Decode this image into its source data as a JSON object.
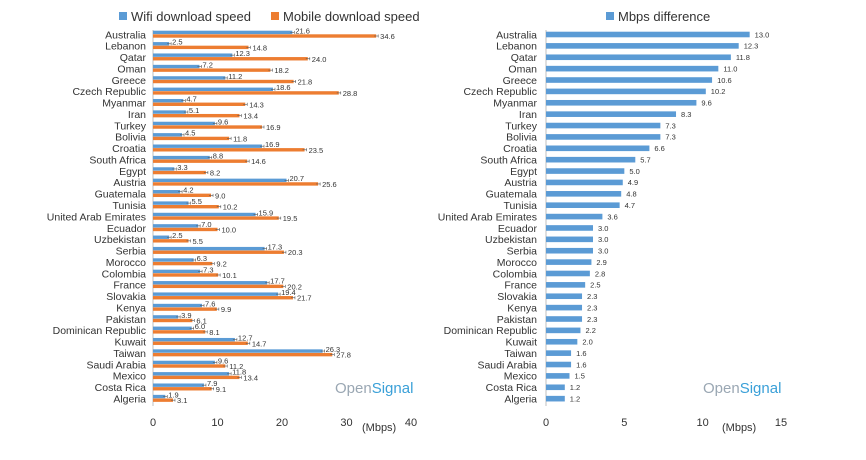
{
  "colors": {
    "wifi": "#5b9bd5",
    "mobile": "#ed7d31",
    "diff": "#5b9bd5",
    "axis_text": "#333333",
    "grid": "#d9d9d9"
  },
  "watermark": {
    "part1": "Open",
    "part2": "Signal"
  },
  "chart_data": [
    {
      "type": "bar",
      "orientation": "horizontal",
      "legend_position": "top",
      "unit_label": "(Mbps)",
      "xlim": [
        0,
        40
      ],
      "xticks": [
        "0",
        "10",
        "20",
        "30",
        "40"
      ],
      "categories": [
        "Australia",
        "Lebanon",
        "Qatar",
        "Oman",
        "Greece",
        "Czech Republic",
        "Myanmar",
        "Iran",
        "Turkey",
        "Bolivia",
        "Croatia",
        "South Africa",
        "Egypt",
        "Austria",
        "Guatemala",
        "Tunisia",
        "United Arab Emirates",
        "Ecuador",
        "Uzbekistan",
        "Serbia",
        "Morocco",
        "Colombia",
        "France",
        "Slovakia",
        "Kenya",
        "Pakistan",
        "Dominican Republic",
        "Kuwait",
        "Taiwan",
        "Saudi Arabia",
        "Mexico",
        "Costa Rica",
        "Algeria"
      ],
      "series": [
        {
          "name": "Wifi download speed",
          "values": [
            21.6,
            2.5,
            12.3,
            7.2,
            11.2,
            18.6,
            4.7,
            5.1,
            9.6,
            4.5,
            16.9,
            8.8,
            3.3,
            20.7,
            4.2,
            5.5,
            15.9,
            7.0,
            2.5,
            17.3,
            6.3,
            7.3,
            17.7,
            19.4,
            7.6,
            3.9,
            6.0,
            12.7,
            26.3,
            9.6,
            11.8,
            7.9,
            1.9
          ]
        },
        {
          "name": "Mobile download speed",
          "values": [
            34.6,
            14.8,
            24.0,
            18.2,
            21.8,
            28.8,
            14.3,
            13.4,
            16.9,
            11.8,
            23.5,
            14.6,
            8.2,
            25.6,
            9.0,
            10.2,
            19.5,
            10.0,
            5.5,
            20.3,
            9.2,
            10.1,
            20.2,
            21.7,
            9.9,
            6.1,
            8.1,
            14.7,
            27.8,
            11.2,
            13.4,
            9.1,
            3.1
          ]
        }
      ],
      "labels": {
        "wifi": [
          "21.6",
          "2.5",
          "12.3",
          "7.2",
          "11.2",
          "18.6",
          "4.7",
          "5.1",
          "9.6",
          "4.5",
          "16.9",
          "8.8",
          "3.3",
          "20.7",
          "4.2",
          "5.5",
          "15.9",
          "7.0",
          "2.5",
          "17.3",
          "6.3",
          "7.3",
          "17.7",
          "19.4",
          "7.6",
          "3.9",
          "6.0",
          "12.7",
          "26.3",
          "9.6",
          "11.8",
          "7.9",
          "1.9"
        ],
        "mobile": [
          "34.6",
          "14.8",
          "24.0",
          "18.2",
          "21.8",
          "28.8",
          "14.3",
          "13.4",
          "16.9",
          "11.8",
          "23.5",
          "14.6",
          "8.2",
          "25.6",
          "9.0",
          "10.2",
          "19.5",
          "10.0",
          "5.5",
          "20.3",
          "9.2",
          "10.1",
          "20.2",
          "21.7",
          "9.9",
          "6.1",
          "8.1",
          "14.7",
          "27.8",
          "11.2",
          "13.4",
          "9.1",
          "3.1"
        ]
      }
    },
    {
      "type": "bar",
      "orientation": "horizontal",
      "legend_position": "top",
      "unit_label": "(Mbps)",
      "xlim": [
        0,
        15
      ],
      "xticks": [
        "0",
        "5",
        "10",
        "15"
      ],
      "categories": [
        "Australia",
        "Lebanon",
        "Qatar",
        "Oman",
        "Greece",
        "Czech Republic",
        "Myanmar",
        "Iran",
        "Turkey",
        "Bolivia",
        "Croatia",
        "South Africa",
        "Egypt",
        "Austria",
        "Guatemala",
        "Tunisia",
        "United Arab Emirates",
        "Ecuador",
        "Uzbekistan",
        "Serbia",
        "Morocco",
        "Colombia",
        "France",
        "Slovakia",
        "Kenya",
        "Pakistan",
        "Dominican Republic",
        "Kuwait",
        "Taiwan",
        "Saudi Arabia",
        "Mexico",
        "Costa Rica",
        "Algeria"
      ],
      "series": [
        {
          "name": "Mbps difference",
          "values": [
            13.0,
            12.3,
            11.8,
            11.0,
            10.6,
            10.2,
            9.6,
            8.3,
            7.3,
            7.3,
            6.6,
            5.7,
            5.0,
            4.9,
            4.8,
            4.7,
            3.6,
            3.0,
            3.0,
            3.0,
            2.9,
            2.8,
            2.5,
            2.3,
            2.3,
            2.3,
            2.2,
            2.0,
            1.6,
            1.6,
            1.5,
            1.2,
            1.2
          ]
        }
      ],
      "labels": {
        "diff": [
          "13.0",
          "12.3",
          "11.8",
          "11.0",
          "10.6",
          "10.2",
          "9.6",
          "8.3",
          "7.3",
          "7.3",
          "6.6",
          "5.7",
          "5.0",
          "4.9",
          "4.8",
          "4.7",
          "3.6",
          "3.0",
          "3.0",
          "3.0",
          "2.9",
          "2.8",
          "2.5",
          "2.3",
          "2.3",
          "2.3",
          "2.2",
          "2.0",
          "1.6",
          "1.6",
          "1.5",
          "1.2",
          "1.2"
        ]
      }
    }
  ]
}
